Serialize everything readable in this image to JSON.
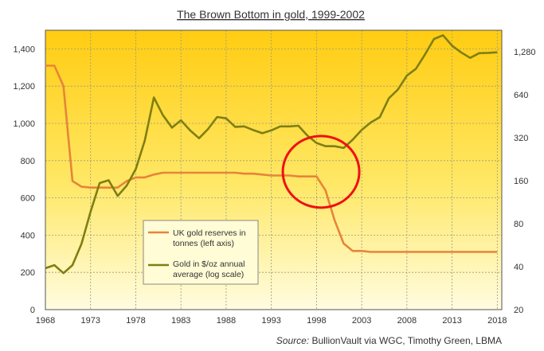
{
  "chart_data": {
    "type": "line",
    "title": "The Brown Bottom in gold, 1999-2002",
    "source_label": "Source:",
    "source_text": " BullionVault via WGC, Timothy Green, LBMA",
    "x_ticks": [
      "1968",
      "1973",
      "1978",
      "1983",
      "1988",
      "1993",
      "1998",
      "2003",
      "2008",
      "2013",
      "2018"
    ],
    "xlim": [
      1968,
      2018.5
    ],
    "y_left": {
      "ticks": [
        "0",
        "200",
        "400",
        "600",
        "800",
        "1,000",
        "1,200",
        "1,400"
      ],
      "ylim": [
        0,
        1500
      ]
    },
    "y_right": {
      "scale": "log2",
      "ticks": [
        "20",
        "40",
        "80",
        "160",
        "320",
        "640",
        "1,280"
      ],
      "ylim": [
        20,
        1810
      ]
    },
    "grid": true,
    "legend_position": "center-left",
    "series": [
      {
        "name": "UK gold reserves in tonnes (left axis)",
        "legend_lines": [
          "UK gold reserves in",
          "tonnes (left axis)"
        ],
        "axis": "left",
        "color": "#E8843A",
        "x": [
          1968,
          1969,
          1970,
          1971,
          1972,
          1973,
          1974,
          1975,
          1976,
          1977,
          1978,
          1979,
          1980,
          1981,
          1982,
          1983,
          1984,
          1985,
          1986,
          1987,
          1988,
          1989,
          1990,
          1991,
          1992,
          1993,
          1994,
          1995,
          1996,
          1997,
          1998,
          1999,
          2000,
          2001,
          2002,
          2003,
          2004,
          2005,
          2006,
          2007,
          2008,
          2009,
          2010,
          2011,
          2012,
          2013,
          2014,
          2015,
          2016,
          2017,
          2018
        ],
        "y": [
          1310,
          1310,
          1200,
          690,
          660,
          655,
          655,
          655,
          655,
          690,
          710,
          710,
          725,
          735,
          735,
          735,
          735,
          735,
          735,
          735,
          735,
          735,
          730,
          730,
          725,
          720,
          720,
          720,
          715,
          715,
          715,
          640,
          480,
          355,
          315,
          315,
          310,
          310,
          310,
          310,
          310,
          310,
          310,
          310,
          310,
          310,
          310,
          310,
          310,
          310,
          310
        ]
      },
      {
        "name": "Gold in $/oz annual average (log scale)",
        "legend_lines": [
          "Gold in $/oz annual",
          "average (log scale)"
        ],
        "axis": "right",
        "color": "#7F7F12",
        "x": [
          1968,
          1969,
          1970,
          1971,
          1972,
          1973,
          1974,
          1975,
          1976,
          1977,
          1978,
          1979,
          1980,
          1981,
          1982,
          1983,
          1984,
          1985,
          1986,
          1987,
          1988,
          1989,
          1990,
          1991,
          1992,
          1993,
          1994,
          1995,
          1996,
          1997,
          1998,
          1999,
          2000,
          2001,
          2002,
          2003,
          2004,
          2005,
          2006,
          2007,
          2008,
          2009,
          2010,
          2011,
          2012,
          2013,
          2014,
          2015,
          2016,
          2017,
          2018
        ],
        "y": [
          39,
          41,
          36,
          41,
          58,
          97,
          154,
          161,
          125,
          148,
          193,
          306,
          612,
          460,
          376,
          424,
          361,
          317,
          368,
          447,
          437,
          381,
          384,
          362,
          344,
          360,
          384,
          384,
          388,
          331,
          294,
          279,
          279,
          271,
          310,
          363,
          409,
          445,
          604,
          695,
          872,
          972,
          1225,
          1572,
          1669,
          1411,
          1266,
          1160,
          1251,
          1257,
          1268
        ]
      }
    ],
    "annotations": [
      {
        "type": "circle",
        "color": "#EE1111",
        "x": 1998.5,
        "y_left": 740
      }
    ]
  }
}
